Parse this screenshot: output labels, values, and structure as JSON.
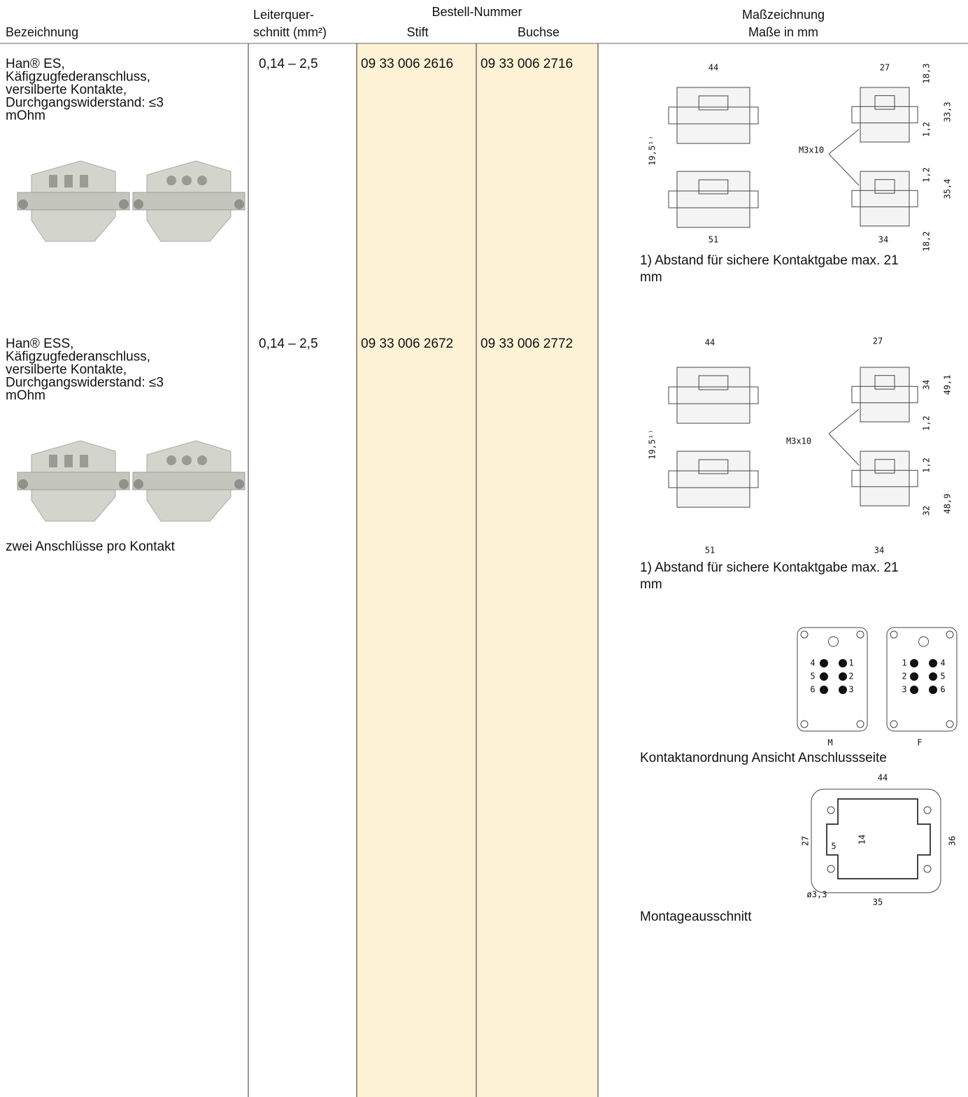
{
  "header": {
    "designation": "Bezeichnung",
    "cross_section_line1": "Leiterquer-",
    "cross_section_line2": "schnitt (mm²)",
    "order_number": "Bestell-Nummer",
    "pin": "Stift",
    "socket": "Buchse",
    "drawing_line1": "Maßzeichnung",
    "drawing_line2": "Maße in mm"
  },
  "rows": [
    {
      "name_lines": [
        "Han® ES,",
        "Käfigzugfederanschluss,",
        "versilberte Kontakte,",
        "Durchgangswiderstand: ≤3",
        "mOhm"
      ],
      "cross_section": "0,14 – 2,5",
      "pin": "09 33 006 2616",
      "socket": "09 33 006 2716",
      "drawing_labels": [
        "44",
        "27",
        "18,3",
        "33,3",
        "1,2",
        "19,5¹⁾",
        "M3x10",
        "1,2",
        "35,4",
        "51",
        "34",
        "18,2"
      ],
      "note_lines": [
        "1) Abstand für sichere Kontaktgabe max. 21",
        "mm"
      ]
    },
    {
      "name_lines": [
        "Han® ESS,",
        "Käfigzugfederanschluss,",
        "versilberte Kontakte,",
        "Durchgangswiderstand: ≤3",
        "mOhm"
      ],
      "cross_section": "0,14 – 2,5",
      "pin": "09 33 006 2672",
      "socket": "09 33 006 2772",
      "drawing_labels": [
        "44",
        "27",
        "34",
        "49,1",
        "1,2",
        "19,5¹⁾",
        "M3x10",
        "1,2",
        "48,9",
        "32",
        "51",
        "34"
      ],
      "note_lines": [
        "1) Abstand für sichere Kontaktgabe max. 21",
        "mm"
      ],
      "extra_note": "zwei Anschlüsse pro Kontakt",
      "contact_arrangement": {
        "male": {
          "label": "M",
          "pins": [
            [
              "4",
              "1"
            ],
            [
              "5",
              "2"
            ],
            [
              "6",
              "3"
            ]
          ]
        },
        "female": {
          "label": "F",
          "pins": [
            [
              "1",
              "4"
            ],
            [
              "2",
              "5"
            ],
            [
              "3",
              "6"
            ]
          ]
        },
        "caption": "Kontaktanordnung Ansicht Anschlussseite"
      },
      "cutout": {
        "labels": [
          "44",
          "27",
          "14",
          "5",
          "36",
          "ø3,3",
          "35"
        ],
        "caption": "Montageausschnitt"
      }
    }
  ]
}
